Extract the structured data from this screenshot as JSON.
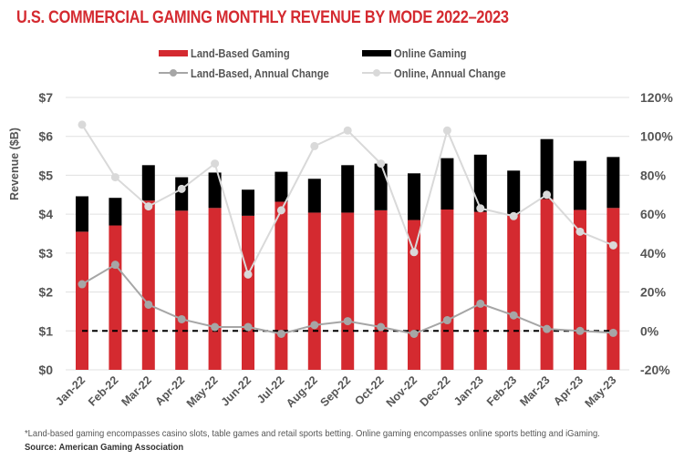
{
  "title": "U.S. COMMERCIAL GAMING MONTHLY REVENUE BY MODE 2022–2023",
  "legend": [
    {
      "label": "Land-Based Gaming",
      "kind": "bar",
      "color": "#d42a30"
    },
    {
      "label": "Online Gaming",
      "kind": "bar",
      "color": "#000000"
    },
    {
      "label": "Land-Based, Annual Change",
      "kind": "line",
      "color": "#a6a6a6"
    },
    {
      "label": "Online, Annual Change",
      "kind": "line",
      "color": "#d9d9d9"
    }
  ],
  "footnote": "*Land-based gaming encompasses casino slots, table games and retail sports betting. Online gaming encompasses online sports betting and iGaming.",
  "source": "Source: American Gaming Association",
  "colors": {
    "title": "#d42a30",
    "land_bar": "#d42a30",
    "online_bar": "#000000",
    "land_line": "#a6a6a6",
    "online_line": "#d9d9d9",
    "gridline": "#e0e0e0",
    "axis_text": "#555555",
    "zero_line": "#000000"
  },
  "chart_data": {
    "type": "bar",
    "stacked": true,
    "title": "U.S. COMMERCIAL GAMING MONTHLY REVENUE BY MODE 2022–2023",
    "xlabel": "",
    "ylabel": "Revenue ($B)",
    "ylim": [
      0,
      7
    ],
    "yticks": [
      0,
      1,
      2,
      3,
      4,
      5,
      6,
      7
    ],
    "ytick_labels": [
      "$0",
      "$1",
      "$2",
      "$3",
      "$4",
      "$5",
      "$6",
      "$7"
    ],
    "y2lim": [
      -20,
      120
    ],
    "y2ticks": [
      -20,
      0,
      20,
      40,
      60,
      80,
      100,
      120
    ],
    "y2tick_labels": [
      "-20%",
      "0%",
      "20%",
      "40%",
      "60%",
      "80%",
      "100%",
      "120%"
    ],
    "grid": true,
    "legend_position": "top-center",
    "categories": [
      "Jan-22",
      "Feb-22",
      "Mar-22",
      "Apr-22",
      "May-22",
      "Jun-22",
      "Jul-22",
      "Aug-22",
      "Sep-22",
      "Oct-22",
      "Nov-22",
      "Dec-22",
      "Jan-23",
      "Feb-23",
      "Mar-23",
      "Apr-23",
      "May-23"
    ],
    "series": [
      {
        "name": "Land-Based Gaming",
        "type": "bar",
        "axis": "left",
        "values": [
          3.55,
          3.71,
          4.35,
          4.09,
          4.16,
          3.96,
          4.32,
          4.04,
          4.04,
          4.1,
          3.85,
          4.12,
          4.06,
          4.0,
          4.39,
          4.11,
          4.16
        ]
      },
      {
        "name": "Online Gaming",
        "type": "bar",
        "axis": "left",
        "values": [
          0.91,
          0.71,
          0.91,
          0.86,
          0.91,
          0.67,
          0.77,
          0.87,
          1.22,
          1.2,
          1.2,
          1.32,
          1.47,
          1.12,
          1.54,
          1.26,
          1.31
        ]
      },
      {
        "name": "Land-Based, Annual Change",
        "type": "line",
        "axis": "right",
        "unit": "%",
        "values": [
          24,
          34,
          13.5,
          6,
          2,
          2,
          -1.5,
          3,
          5,
          2,
          -1.5,
          5.5,
          14,
          8,
          1,
          0,
          -1
        ]
      },
      {
        "name": "Online, Annual Change",
        "type": "line",
        "axis": "right",
        "unit": "%",
        "values": [
          106,
          79,
          64,
          73,
          86,
          29,
          62,
          95,
          103,
          86,
          40.5,
          103,
          63,
          59,
          70,
          51,
          44
        ]
      }
    ],
    "reference_line": {
      "axis": "right",
      "value": 0,
      "style": "dashed"
    }
  }
}
